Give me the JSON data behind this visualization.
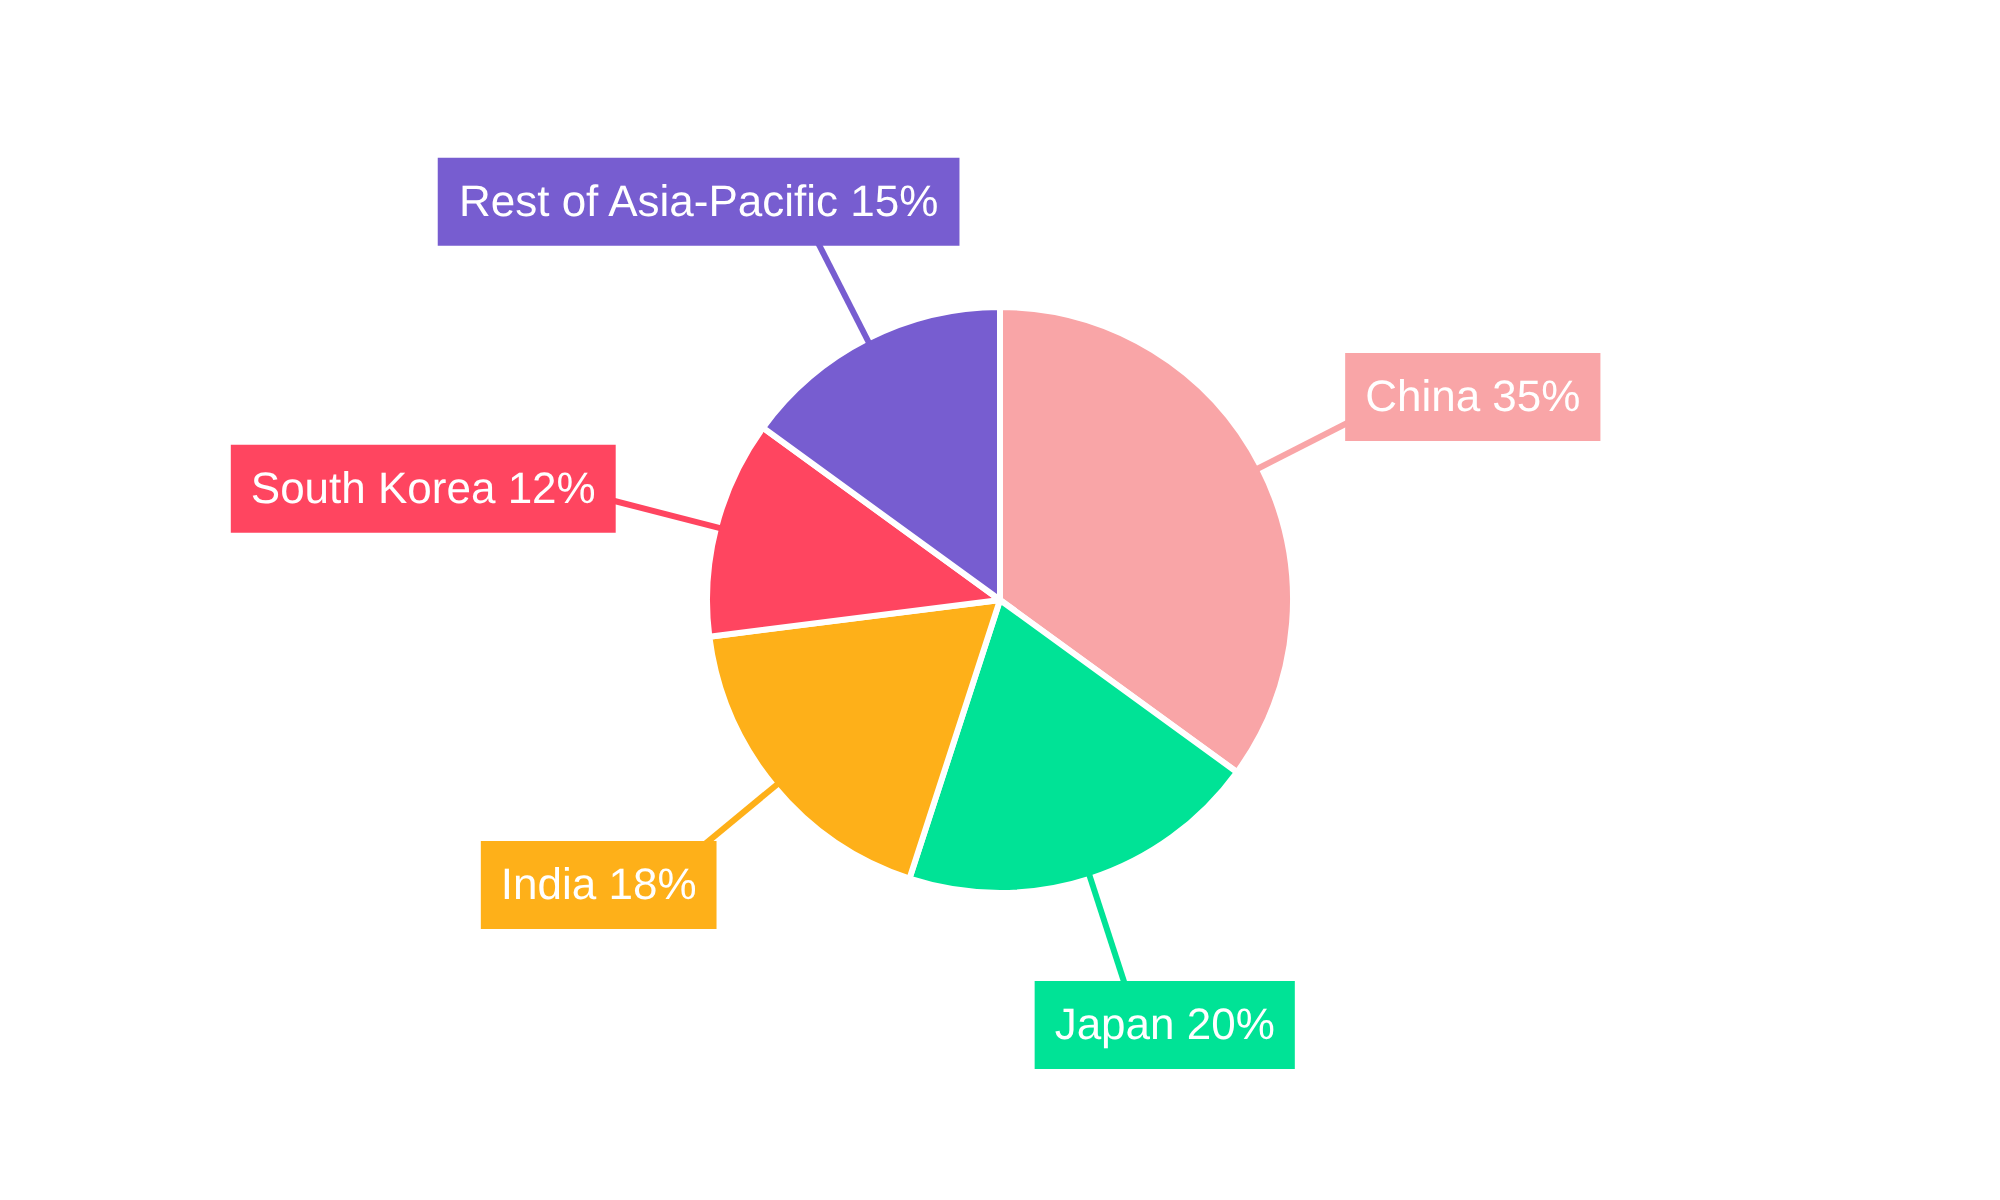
{
  "chart_data": {
    "type": "pie",
    "categories": [
      "China",
      "Japan",
      "India",
      "South Korea",
      "Rest of Asia-Pacific"
    ],
    "values": [
      35,
      20,
      18,
      12,
      15
    ],
    "colors": [
      "#f9a5a7",
      "#00e396",
      "#feb019",
      "#ff4560",
      "#775dd0"
    ],
    "value_labels": [
      "35%",
      "20%",
      "18%",
      "12%",
      "15%"
    ],
    "legend": false
  }
}
